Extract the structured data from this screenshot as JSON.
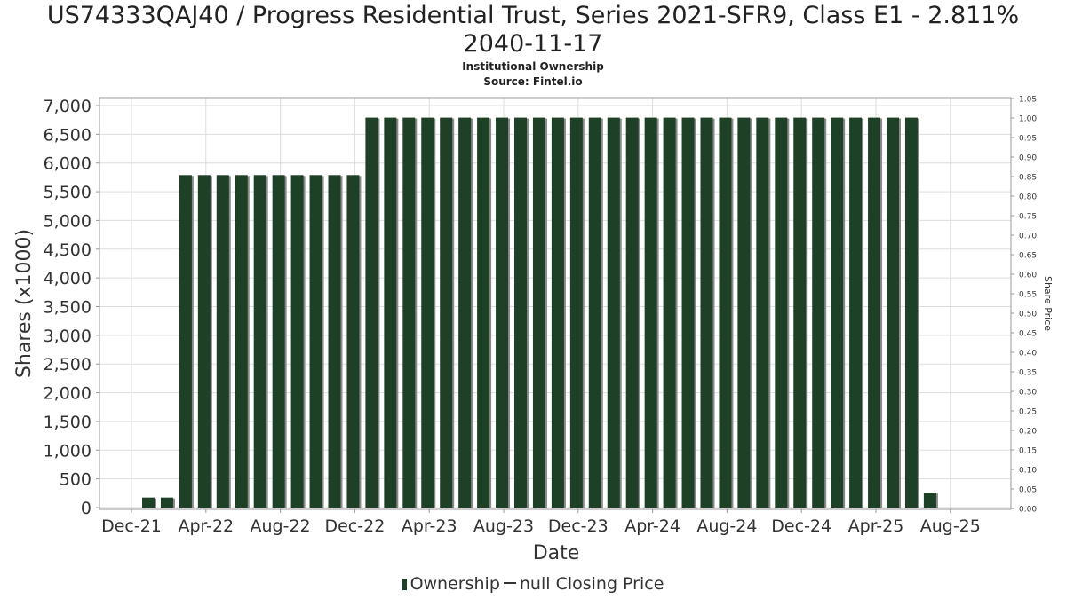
{
  "header": {
    "title_line1": "US74333QAJ40 / Progress Residential Trust, Series 2021-SFR9, Class E1 - 2.811%",
    "title_line2": "2040-11-17",
    "subtitle_line1": "Institutional Ownership",
    "subtitle_line2": "Source: Fintel.io"
  },
  "legend": {
    "ownership_label": "Ownership",
    "price_label": "null Closing Price"
  },
  "colors": {
    "bar": "#1d4027",
    "bar_shadow": "#8a8a8a",
    "grid": "#dddddd",
    "axis_text": "#333333"
  },
  "chart_data": {
    "type": "bar",
    "xlabel": "Date",
    "ylabel": "Shares (x1000)",
    "y2label": "Share Price",
    "ylim": [
      0,
      7000
    ],
    "y2lim": [
      0,
      1.05
    ],
    "y_ticks": [
      "0",
      "500",
      "1,000",
      "1,500",
      "2,000",
      "2,500",
      "3,000",
      "3,500",
      "4,000",
      "4,500",
      "5,000",
      "5,500",
      "6,000",
      "6,500",
      "7,000"
    ],
    "y2_ticks": [
      "0.00",
      "0.05",
      "0.10",
      "0.15",
      "0.20",
      "0.25",
      "0.30",
      "0.35",
      "0.40",
      "0.45",
      "0.50",
      "0.55",
      "0.60",
      "0.65",
      "0.70",
      "0.75",
      "0.80",
      "0.85",
      "0.90",
      "0.95",
      "1.00",
      "1.05"
    ],
    "x_ticks": [
      "Dec-21",
      "Apr-22",
      "Aug-22",
      "Dec-22",
      "Apr-23",
      "Aug-23",
      "Dec-23",
      "Apr-24",
      "Aug-24",
      "Dec-24",
      "Apr-25",
      "Aug-25"
    ],
    "grid": true,
    "legend_position": "bottom",
    "series": [
      {
        "name": "Ownership",
        "values": [
          175,
          175,
          5790,
          5790,
          5790,
          5790,
          5790,
          5790,
          5790,
          5790,
          5790,
          5790,
          6790,
          6790,
          6790,
          6790,
          6790,
          6790,
          6790,
          6790,
          6790,
          6790,
          6790,
          6790,
          6790,
          6790,
          6790,
          6790,
          6790,
          6790,
          6790,
          6790,
          6790,
          6790,
          6790,
          6790,
          6790,
          6790,
          6790,
          6790,
          6790,
          6790,
          260
        ]
      }
    ]
  }
}
